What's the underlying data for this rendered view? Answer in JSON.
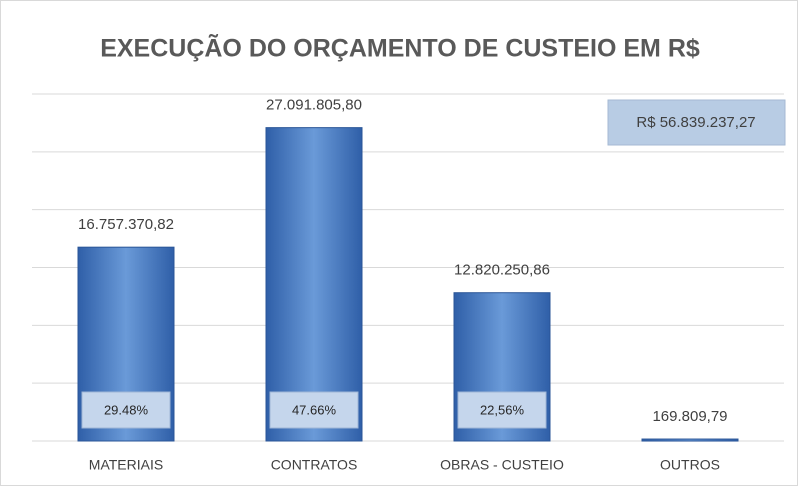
{
  "chart_data": {
    "type": "bar",
    "title": "EXECUÇÃO DO ORÇAMENTO DE CUSTEIO EM R$",
    "categories": [
      "MATERIAIS",
      "CONTRATOS",
      "OBRAS - CUSTEIO",
      "OUTROS"
    ],
    "values": [
      16757370.82,
      27091805.8,
      12820250.86,
      169809.79
    ],
    "value_labels": [
      "16.757.370,82",
      "27.091.805,80",
      "12.820.250,86",
      "169.809,79"
    ],
    "share_labels": [
      "29.48%",
      "47.66%",
      "22,56%"
    ],
    "total_label": "R$ 56.839.237,27",
    "color": "#4a7cc4",
    "ylim": [
      0,
      30000000
    ],
    "yticks": [
      0,
      5000000,
      10000000,
      15000000,
      20000000,
      25000000,
      30000000
    ],
    "grid": true
  }
}
